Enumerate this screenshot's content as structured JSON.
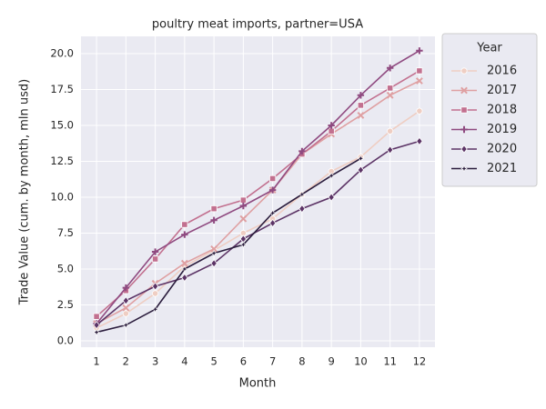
{
  "chart_data": {
    "type": "line",
    "title": "poultry meat imports, partner=USA",
    "x_label": "Month",
    "y_label": "Trade Value (cum. by month, mln usd)",
    "legend_title": "Year",
    "legend_position": "outside right top",
    "grid": true,
    "x": [
      1,
      2,
      3,
      4,
      5,
      6,
      7,
      8,
      9,
      10,
      11,
      12
    ],
    "xlim": [
      0.47,
      12.53
    ],
    "xticks": [
      1,
      2,
      3,
      4,
      5,
      6,
      7,
      8,
      9,
      10,
      11,
      12
    ],
    "ylim": [
      -0.44,
      21.2
    ],
    "yticks": [
      {
        "value": 0,
        "label": "0.0"
      },
      {
        "value": 2.5,
        "label": "2.5"
      },
      {
        "value": 5,
        "label": "5.0"
      },
      {
        "value": 7.5,
        "label": "7.5"
      },
      {
        "value": 10,
        "label": "10.0"
      },
      {
        "value": 12.5,
        "label": "12.5"
      },
      {
        "value": 15,
        "label": "15.0"
      },
      {
        "value": 17.5,
        "label": "17.5"
      },
      {
        "value": 20,
        "label": "20.0"
      }
    ],
    "series": [
      {
        "name": "2016",
        "color": "#efcec3",
        "marker": "circle",
        "values": [
          0.9,
          1.9,
          3.3,
          5.2,
          6.3,
          7.5,
          8.5,
          10.2,
          11.8,
          12.8,
          14.6,
          16.0
        ]
      },
      {
        "name": "2017",
        "color": "#dfa0a2",
        "marker": "x",
        "values": [
          1.2,
          2.3,
          4.0,
          5.4,
          6.4,
          8.5,
          10.5,
          13.0,
          14.4,
          15.7,
          17.1,
          18.1
        ]
      },
      {
        "name": "2018",
        "color": "#c2708f",
        "marker": "square",
        "values": [
          1.7,
          3.5,
          5.7,
          8.1,
          9.2,
          9.8,
          11.3,
          13.0,
          14.6,
          16.4,
          17.6,
          18.8
        ]
      },
      {
        "name": "2019",
        "color": "#8f4a80",
        "marker": "plus",
        "values": [
          1.2,
          3.7,
          6.2,
          7.4,
          8.4,
          9.4,
          10.5,
          13.2,
          15.0,
          17.1,
          19.0,
          20.2
        ]
      },
      {
        "name": "2020",
        "color": "#5c3466",
        "marker": "diamond",
        "values": [
          1.1,
          2.8,
          3.8,
          4.4,
          5.4,
          7.1,
          8.2,
          9.2,
          10.0,
          11.9,
          13.3,
          13.9
        ]
      },
      {
        "name": "2021",
        "color": "#2b1d3d",
        "marker": "star",
        "values": [
          0.6,
          1.1,
          2.2,
          5.0,
          6.1,
          6.7,
          8.9,
          10.2,
          11.5,
          12.7,
          null,
          null
        ]
      }
    ]
  }
}
